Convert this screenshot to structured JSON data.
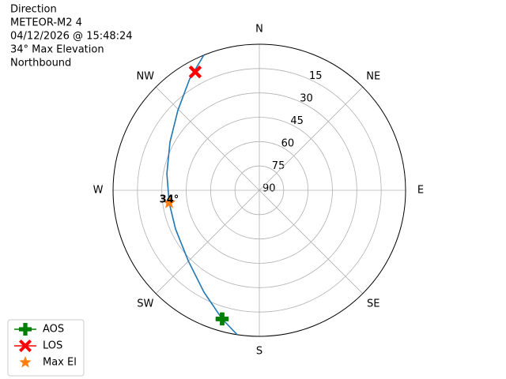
{
  "chart_data": {
    "type": "polar",
    "text_lines": [
      "Direction",
      "METEOR-M2 4",
      "04/12/2026 @ 15:48:24",
      "34° Max Elevation",
      "Northbound"
    ],
    "xticks": [
      {
        "value": 0,
        "label": "N"
      },
      {
        "value": 45,
        "label": "NE"
      },
      {
        "value": 90,
        "label": "E"
      },
      {
        "value": 135,
        "label": "SE"
      },
      {
        "value": 180,
        "label": "S"
      },
      {
        "value": 225,
        "label": "SW"
      },
      {
        "value": 270,
        "label": "W"
      },
      {
        "value": 315,
        "label": "NW"
      }
    ],
    "rlim": [
      90,
      0
    ],
    "rticks": [
      15,
      30,
      45,
      60,
      75,
      90
    ],
    "grid": true,
    "series": [
      {
        "color": "#1f77b4",
        "marker": "none",
        "x": [
          188.7,
          196.1,
          208.5,
          225.3,
          245.2,
          262.1,
          280.2,
          298.4,
          314.4,
          328,
          337.7
        ],
        "values": [
          0,
          7.5,
          18.6,
          28.4,
          33.2,
          34,
          32.2,
          27.5,
          19.8,
          9.1,
          0
        ]
      },
      {
        "name": "AOS",
        "color": "#008000",
        "marker": "plus",
        "x": [
          196.1
        ],
        "values": [
          7.5
        ]
      },
      {
        "name": "LOS",
        "color": "#ff0000",
        "marker": "x",
        "x": [
          331.6
        ],
        "values": [
          7.1
        ]
      },
      {
        "name": "Max El",
        "color": "#ff7f0e",
        "marker": "star",
        "x": [
          262.1
        ],
        "values": [
          34
        ],
        "value_labels": [
          "34°"
        ]
      }
    ]
  }
}
